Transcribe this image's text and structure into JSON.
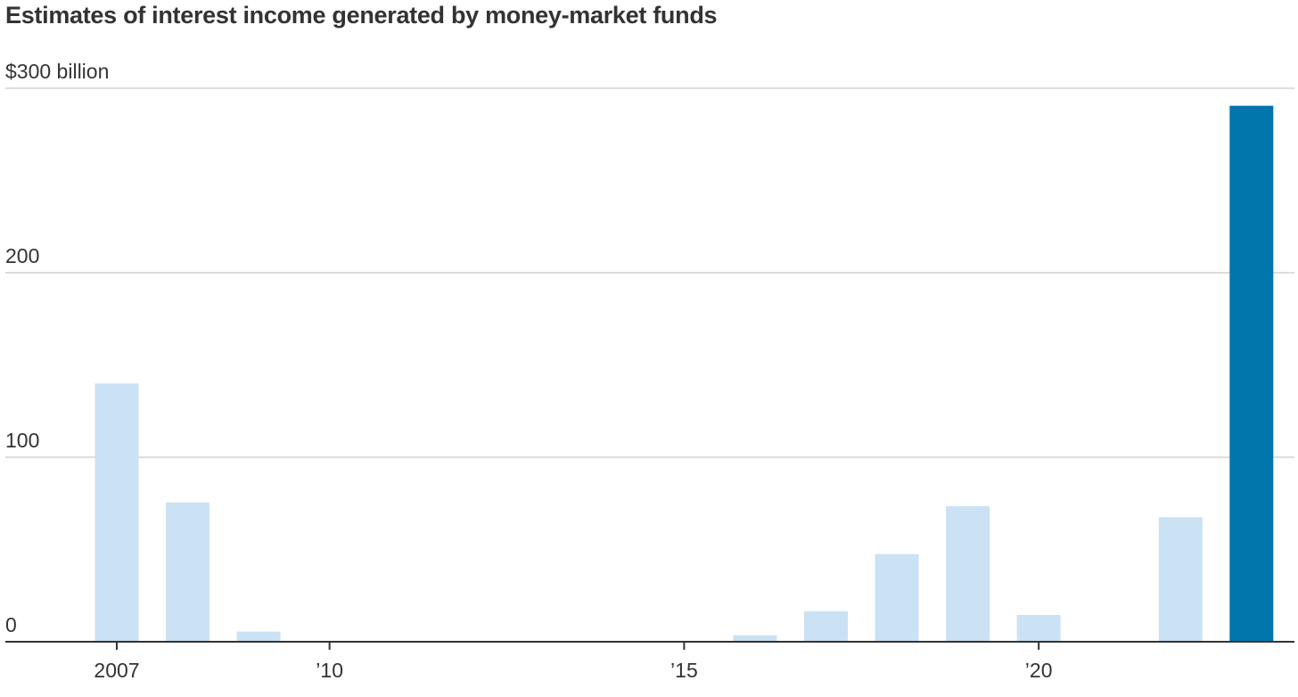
{
  "chart_data": {
    "type": "bar",
    "title": "Estimates of interest income generated by money-market funds",
    "xlabel": "",
    "ylabel": "",
    "y_unit_label": "$300 billion",
    "ylim": [
      0,
      300
    ],
    "y_ticks": [
      {
        "value": 0,
        "label": "0"
      },
      {
        "value": 100,
        "label": "100"
      },
      {
        "value": 200,
        "label": "200"
      },
      {
        "value": 300,
        "label": "$300 billion"
      }
    ],
    "x_ticks": [
      {
        "year": 2007,
        "label": "2007"
      },
      {
        "year": 2010,
        "label": "’10"
      },
      {
        "year": 2015,
        "label": "’15"
      },
      {
        "year": 2020,
        "label": "’20"
      }
    ],
    "categories": [
      2007,
      2008,
      2009,
      2010,
      2011,
      2012,
      2013,
      2014,
      2015,
      2016,
      2017,
      2018,
      2019,
      2020,
      2021,
      2022,
      2023
    ],
    "values": [
      140,
      75.5,
      5.5,
      0.5,
      0.5,
      0.5,
      0,
      0,
      0.5,
      3.5,
      16.5,
      47.5,
      73.5,
      14.5,
      0.5,
      67.5,
      290.5
    ],
    "highlight_category": 2023,
    "colors": {
      "bar": "#cbe1f4",
      "highlight": "#0076ad",
      "grid": "#dddddd",
      "axis": "#333333"
    },
    "grid": true,
    "legend": "none"
  }
}
